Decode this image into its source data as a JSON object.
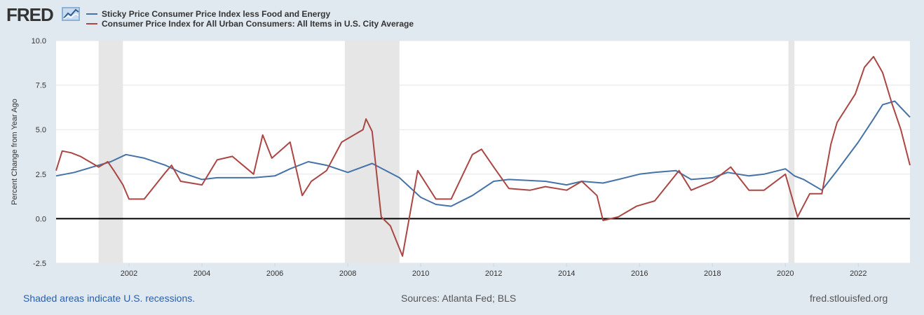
{
  "header": {
    "logo_text": "FRED",
    "logo_icon": "chart-line-icon"
  },
  "footer": {
    "note": "Shaded areas indicate U.S. recessions.",
    "sources": "Sources: Atlanta Fed; BLS",
    "site": "fred.stlouisfed.org"
  },
  "colors": {
    "sticky": "#4572a7",
    "cpi": "#aa4643",
    "recession": "#e6e6e6",
    "zero_line": "#000000"
  },
  "chart_data": {
    "type": "line",
    "ylabel": "Percent Change from Year Ago",
    "xlabel": "",
    "ylim": [
      -2.5,
      10.0
    ],
    "xlim": [
      "2000-01",
      "2023-06"
    ],
    "y_ticks": [
      "-2.5",
      "0.0",
      "2.5",
      "5.0",
      "7.5",
      "10.0"
    ],
    "x_ticks": [
      "2002",
      "2004",
      "2006",
      "2008",
      "2010",
      "2012",
      "2014",
      "2016",
      "2018",
      "2020",
      "2022"
    ],
    "grid": true,
    "legend_position": "top-left",
    "recessions": [
      [
        "2001-03",
        "2001-11"
      ],
      [
        "2007-12",
        "2009-06"
      ],
      [
        "2020-02",
        "2020-04"
      ]
    ],
    "series": [
      {
        "name": "Sticky Price Consumer Price Index less Food and Energy",
        "points": [
          [
            "2000-01",
            2.4
          ],
          [
            "2000-07",
            2.6
          ],
          [
            "2001-01",
            2.9
          ],
          [
            "2001-07",
            3.2
          ],
          [
            "2001-12",
            3.6
          ],
          [
            "2002-06",
            3.4
          ],
          [
            "2003-01",
            3.0
          ],
          [
            "2003-06",
            2.6
          ],
          [
            "2004-01",
            2.2
          ],
          [
            "2004-06",
            2.3
          ],
          [
            "2005-01",
            2.3
          ],
          [
            "2005-06",
            2.3
          ],
          [
            "2006-01",
            2.4
          ],
          [
            "2006-06",
            2.8
          ],
          [
            "2006-12",
            3.2
          ],
          [
            "2007-06",
            3.0
          ],
          [
            "2008-01",
            2.6
          ],
          [
            "2008-09",
            3.1
          ],
          [
            "2009-06",
            2.3
          ],
          [
            "2010-01",
            1.2
          ],
          [
            "2010-06",
            0.8
          ],
          [
            "2010-11",
            0.7
          ],
          [
            "2011-06",
            1.3
          ],
          [
            "2012-01",
            2.1
          ],
          [
            "2012-06",
            2.2
          ],
          [
            "2013-06",
            2.1
          ],
          [
            "2014-01",
            1.9
          ],
          [
            "2014-06",
            2.1
          ],
          [
            "2015-01",
            2.0
          ],
          [
            "2015-06",
            2.2
          ],
          [
            "2016-01",
            2.5
          ],
          [
            "2016-06",
            2.6
          ],
          [
            "2017-01",
            2.7
          ],
          [
            "2017-06",
            2.2
          ],
          [
            "2018-01",
            2.3
          ],
          [
            "2018-06",
            2.6
          ],
          [
            "2019-01",
            2.4
          ],
          [
            "2019-06",
            2.5
          ],
          [
            "2020-01",
            2.8
          ],
          [
            "2020-04",
            2.4
          ],
          [
            "2020-07",
            2.2
          ],
          [
            "2021-01",
            1.6
          ],
          [
            "2021-06",
            2.7
          ],
          [
            "2022-01",
            4.3
          ],
          [
            "2022-06",
            5.6
          ],
          [
            "2022-09",
            6.4
          ],
          [
            "2023-01",
            6.6
          ],
          [
            "2023-06",
            5.7
          ]
        ]
      },
      {
        "name": "Consumer Price Index for All Urban Consumers: All Items in U.S. City Average",
        "points": [
          [
            "2000-01",
            2.7
          ],
          [
            "2000-03",
            3.8
          ],
          [
            "2000-06",
            3.7
          ],
          [
            "2000-09",
            3.5
          ],
          [
            "2001-03",
            2.9
          ],
          [
            "2001-06",
            3.2
          ],
          [
            "2001-08",
            2.7
          ],
          [
            "2001-11",
            1.9
          ],
          [
            "2002-01",
            1.1
          ],
          [
            "2002-06",
            1.1
          ],
          [
            "2003-01",
            2.6
          ],
          [
            "2003-03",
            3.0
          ],
          [
            "2003-06",
            2.1
          ],
          [
            "2004-01",
            1.9
          ],
          [
            "2004-06",
            3.3
          ],
          [
            "2004-11",
            3.5
          ],
          [
            "2005-06",
            2.5
          ],
          [
            "2005-09",
            4.7
          ],
          [
            "2005-12",
            3.4
          ],
          [
            "2006-06",
            4.3
          ],
          [
            "2006-10",
            1.3
          ],
          [
            "2007-01",
            2.1
          ],
          [
            "2007-06",
            2.7
          ],
          [
            "2007-11",
            4.3
          ],
          [
            "2008-06",
            5.0
          ],
          [
            "2008-07",
            5.6
          ],
          [
            "2008-09",
            4.9
          ],
          [
            "2008-12",
            0.1
          ],
          [
            "2009-03",
            -0.4
          ],
          [
            "2009-07",
            -2.1
          ],
          [
            "2009-12",
            2.7
          ],
          [
            "2010-06",
            1.1
          ],
          [
            "2010-11",
            1.1
          ],
          [
            "2011-06",
            3.6
          ],
          [
            "2011-09",
            3.9
          ],
          [
            "2012-01",
            2.9
          ],
          [
            "2012-06",
            1.7
          ],
          [
            "2013-01",
            1.6
          ],
          [
            "2013-06",
            1.8
          ],
          [
            "2014-01",
            1.6
          ],
          [
            "2014-06",
            2.1
          ],
          [
            "2014-11",
            1.3
          ],
          [
            "2015-01",
            -0.1
          ],
          [
            "2015-06",
            0.1
          ],
          [
            "2015-12",
            0.7
          ],
          [
            "2016-06",
            1.0
          ],
          [
            "2017-02",
            2.7
          ],
          [
            "2017-06",
            1.6
          ],
          [
            "2018-01",
            2.1
          ],
          [
            "2018-07",
            2.9
          ],
          [
            "2019-01",
            1.6
          ],
          [
            "2019-06",
            1.6
          ],
          [
            "2020-01",
            2.5
          ],
          [
            "2020-05",
            0.1
          ],
          [
            "2020-09",
            1.4
          ],
          [
            "2021-01",
            1.4
          ],
          [
            "2021-04",
            4.2
          ],
          [
            "2021-06",
            5.4
          ],
          [
            "2021-12",
            7.0
          ],
          [
            "2022-03",
            8.5
          ],
          [
            "2022-06",
            9.1
          ],
          [
            "2022-09",
            8.2
          ],
          [
            "2022-12",
            6.5
          ],
          [
            "2023-03",
            5.0
          ],
          [
            "2023-06",
            3.0
          ]
        ]
      }
    ]
  }
}
